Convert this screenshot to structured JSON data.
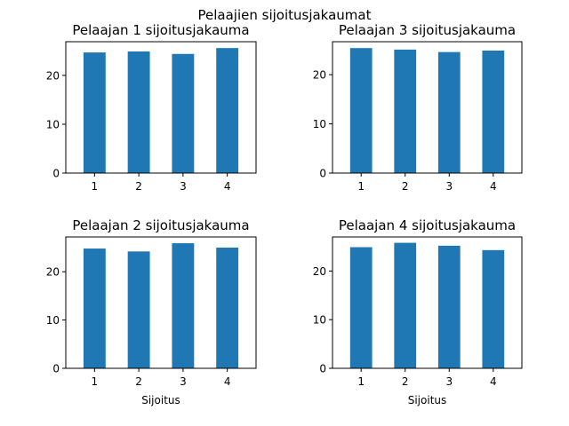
{
  "figure": {
    "suptitle": "Pelaajien sijoitusjakaumat"
  },
  "colors": {
    "bar": "#1f77b4",
    "axes": "#000000",
    "background": "#ffffff"
  },
  "chart_data": [
    {
      "type": "bar",
      "title": "Pelaajan 1 sijoitusjakauma",
      "categories": [
        "1",
        "2",
        "3",
        "4"
      ],
      "values": [
        24.7,
        24.9,
        24.4,
        25.6
      ],
      "xlabel": "",
      "ylabel": "",
      "ylim": [
        0,
        26.9
      ],
      "yticks": [
        0,
        10,
        20
      ],
      "grid": false
    },
    {
      "type": "bar",
      "title": "Pelaajan 3 sijoitusjakauma",
      "categories": [
        "1",
        "2",
        "3",
        "4"
      ],
      "values": [
        25.4,
        25.1,
        24.6,
        24.9
      ],
      "xlabel": "",
      "ylabel": "",
      "ylim": [
        0,
        26.7
      ],
      "yticks": [
        0,
        10,
        20
      ],
      "grid": false
    },
    {
      "type": "bar",
      "title": "Pelaajan 2 sijoitusjakauma",
      "categories": [
        "1",
        "2",
        "3",
        "4"
      ],
      "values": [
        24.8,
        24.2,
        25.9,
        25.0
      ],
      "xlabel": "Sijoitus",
      "ylabel": "",
      "ylim": [
        0,
        27.2
      ],
      "yticks": [
        0,
        10,
        20
      ],
      "grid": false
    },
    {
      "type": "bar",
      "title": "Pelaajan 4 sijoitusjakauma",
      "categories": [
        "1",
        "2",
        "3",
        "4"
      ],
      "values": [
        24.9,
        25.8,
        25.2,
        24.3
      ],
      "xlabel": "Sijoitus",
      "ylabel": "",
      "ylim": [
        0,
        27.0
      ],
      "yticks": [
        0,
        10,
        20
      ],
      "grid": false
    }
  ]
}
